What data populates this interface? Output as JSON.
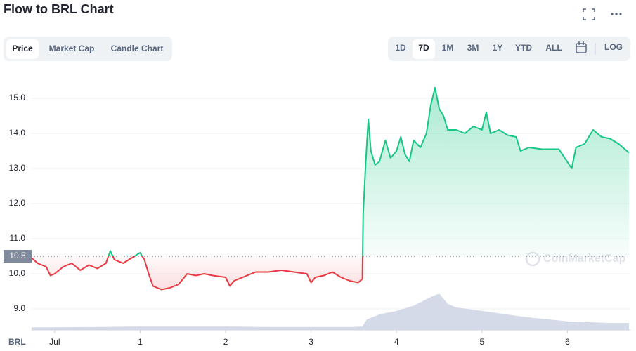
{
  "header": {
    "title": "Flow to BRL Chart"
  },
  "tabs": [
    "Price",
    "Market Cap",
    "Candle Chart"
  ],
  "active_tab": 0,
  "ranges": [
    "1D",
    "7D",
    "1M",
    "3M",
    "1Y",
    "YTD",
    "ALL"
  ],
  "active_range": 1,
  "log_button": "LOG",
  "currency": "BRL",
  "watermark": "CoinMarketCap",
  "chart_data": {
    "type": "line",
    "xlim": [
      -0.27,
      6.72
    ],
    "xticks": [
      {
        "value": 0,
        "label": "Jul"
      },
      1,
      2,
      3,
      4,
      5,
      6
    ],
    "ylim": [
      8.4,
      15.8
    ],
    "yticks": [
      {
        "value": 9,
        "label": "9.0"
      },
      {
        "value": 10,
        "label": "10.0"
      },
      {
        "value": 11,
        "label": "11.0"
      },
      {
        "value": 12,
        "label": "12.0"
      },
      {
        "value": 13,
        "label": "13.0"
      },
      {
        "value": 14,
        "label": "14.0"
      },
      {
        "value": 15,
        "label": "15.0"
      }
    ],
    "y2lim": [
      0,
      300
    ],
    "grid": true,
    "baseline": 10.5,
    "down_color": "#ea3943",
    "series": [
      {
        "name": "Price",
        "color": "#16c784",
        "x": [
          -0.27,
          -0.2,
          -0.1,
          -0.05,
          0,
          0.1,
          0.2,
          0.3,
          0.4,
          0.5,
          0.6,
          0.65,
          0.7,
          0.8,
          0.9,
          1,
          1.05,
          1.1,
          1.15,
          1.25,
          1.35,
          1.45,
          1.55,
          1.65,
          1.75,
          1.85,
          2,
          2.05,
          2.1,
          2.2,
          2.35,
          2.5,
          2.65,
          2.8,
          2.95,
          3,
          3.05,
          3.15,
          3.25,
          3.35,
          3.45,
          3.55,
          3.6,
          3.61,
          3.64,
          3.67,
          3.7,
          3.75,
          3.8,
          3.87,
          3.93,
          4,
          4.05,
          4.1,
          4.15,
          4.2,
          4.28,
          4.35,
          4.4,
          4.45,
          4.5,
          4.55,
          4.6,
          4.7,
          4.8,
          4.9,
          5,
          5.05,
          5.1,
          5.2,
          5.3,
          5.4,
          5.45,
          5.55,
          5.7,
          5.9,
          6.05,
          6.1,
          6.2,
          6.3,
          6.4,
          6.5,
          6.6,
          6.72
        ],
        "values": [
          10.45,
          10.3,
          10.2,
          9.95,
          10.0,
          10.2,
          10.3,
          10.1,
          10.25,
          10.15,
          10.3,
          10.65,
          10.4,
          10.3,
          10.45,
          10.6,
          10.4,
          10.0,
          9.65,
          9.55,
          9.6,
          9.7,
          10.0,
          9.95,
          10.0,
          9.95,
          9.9,
          9.65,
          9.8,
          9.9,
          10.05,
          10.05,
          10.1,
          10.05,
          10.0,
          9.75,
          9.9,
          9.95,
          10.05,
          9.9,
          9.8,
          9.75,
          9.85,
          11.7,
          13.2,
          14.4,
          13.5,
          13.1,
          13.2,
          13.8,
          13.3,
          13.5,
          13.9,
          13.4,
          13.2,
          13.8,
          13.6,
          14.0,
          14.8,
          15.3,
          14.7,
          14.5,
          14.1,
          14.1,
          14.0,
          14.2,
          14.1,
          14.6,
          14.0,
          14.1,
          13.95,
          13.9,
          13.5,
          13.6,
          13.55,
          13.55,
          13.0,
          13.6,
          13.7,
          14.1,
          13.9,
          13.85,
          13.7,
          13.45
        ]
      },
      {
        "name": "Volume",
        "color": "#cfd6e4",
        "axis": "y2",
        "x": [
          -0.27,
          0,
          0.5,
          1,
          1.5,
          2,
          2.5,
          3,
          3.5,
          3.6,
          3.65,
          3.8,
          4,
          4.2,
          4.4,
          4.5,
          4.6,
          4.7,
          5,
          5.5,
          6,
          6.5,
          6.72
        ],
        "values": [
          3,
          3,
          3.5,
          4,
          4,
          4,
          3.5,
          3.5,
          3.5,
          4,
          12,
          18,
          22,
          28,
          38,
          42,
          30,
          26,
          22,
          15,
          10,
          8,
          8
        ]
      }
    ]
  }
}
